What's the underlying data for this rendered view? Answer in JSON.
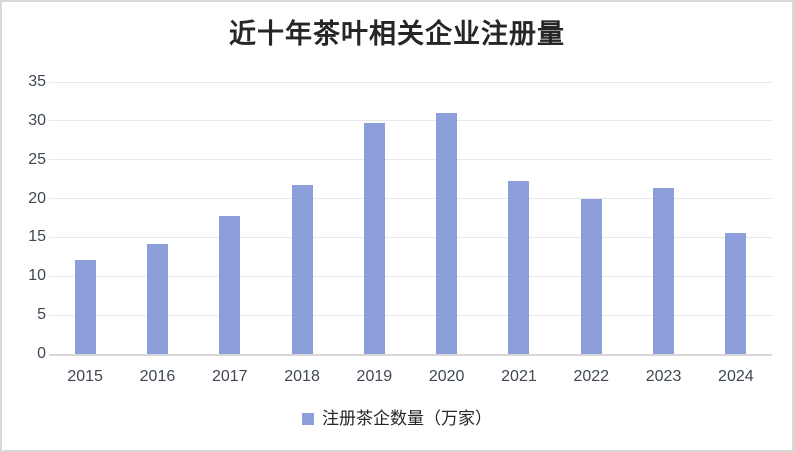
{
  "chart_data": {
    "type": "bar",
    "title": "近十年茶叶相关企业注册量",
    "categories": [
      "2015",
      "2016",
      "2017",
      "2018",
      "2019",
      "2020",
      "2021",
      "2022",
      "2023",
      "2024"
    ],
    "series": [
      {
        "name": "注册茶企数量（万家）",
        "values": [
          12.1,
          14.1,
          17.8,
          21.8,
          29.7,
          31.0,
          22.2,
          20.0,
          21.4,
          15.6
        ]
      }
    ],
    "xlabel": "",
    "ylabel": "",
    "ylim": [
      0,
      35
    ],
    "ytick_interval": 5,
    "grid": true,
    "legend_position": "bottom",
    "colors": {
      "bar": "#8d9fda",
      "gridline": "#e8e8e8",
      "axis_line": "#d7d7d7",
      "tick_text": "#3f4754",
      "title_text": "#262626",
      "frame_border": "#d9d9d9"
    }
  }
}
